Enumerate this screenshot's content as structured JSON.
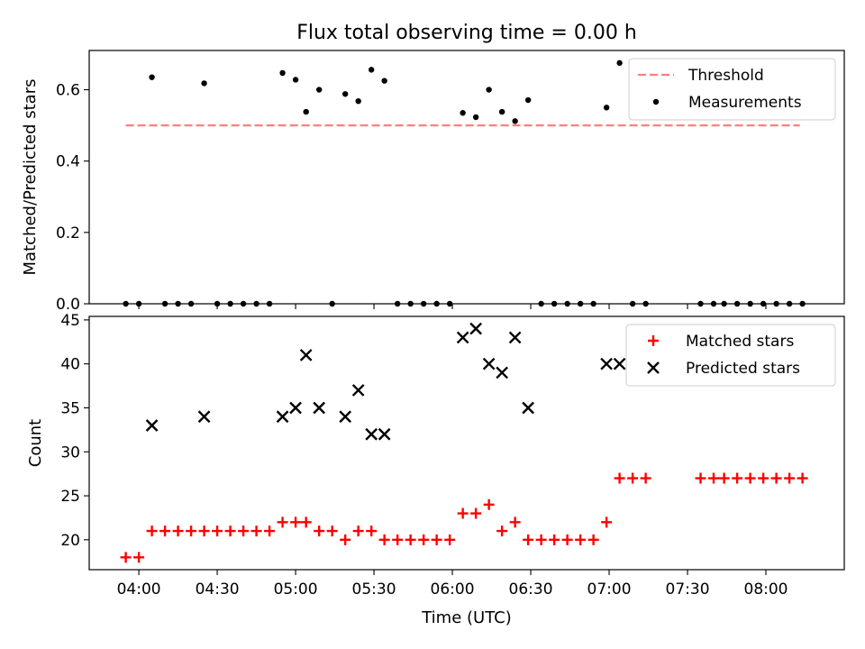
{
  "chart_data": [
    {
      "type": "scatter",
      "title": "Flux total observing time = 0.00 h",
      "xlabel": "",
      "ylabel": "Matched/Predicted stars",
      "ylim": [
        0.0,
        0.71
      ],
      "yticks": [
        0.0,
        0.2,
        0.4,
        0.6
      ],
      "ytick_labels": [
        "0.0",
        "0.2",
        "0.4",
        "0.6"
      ],
      "xlim": [
        "03:41",
        "08:30"
      ],
      "xticks": [
        "04:00",
        "04:30",
        "05:00",
        "05:30",
        "06:00",
        "06:30",
        "07:00",
        "07:30",
        "08:00"
      ],
      "xtick_labels_shown": false,
      "legend_position": "top-right",
      "series": [
        {
          "name": "Threshold",
          "kind": "line",
          "style": "dashed",
          "color": "#ff7f7f",
          "points": [
            [
              "03:55",
              0.5
            ],
            [
              "08:13",
              0.5
            ]
          ]
        },
        {
          "name": "Measurements",
          "kind": "scatter",
          "color": "#000000",
          "points": [
            [
              "03:55",
              0.0
            ],
            [
              "04:00",
              0.0
            ],
            [
              "04:05",
              0.635
            ],
            [
              "04:10",
              0.0
            ],
            [
              "04:15",
              0.0
            ],
            [
              "04:20",
              0.0
            ],
            [
              "04:25",
              0.618
            ],
            [
              "04:30",
              0.0
            ],
            [
              "04:35",
              0.0
            ],
            [
              "04:40",
              0.0
            ],
            [
              "04:45",
              0.0
            ],
            [
              "04:50",
              0.0
            ],
            [
              "04:55",
              0.647
            ],
            [
              "05:00",
              0.628
            ],
            [
              "05:04",
              0.538
            ],
            [
              "05:09",
              0.6
            ],
            [
              "05:14",
              0.0
            ],
            [
              "05:19",
              0.588
            ],
            [
              "05:24",
              0.568
            ],
            [
              "05:29",
              0.656
            ],
            [
              "05:34",
              0.625
            ],
            [
              "05:39",
              0.0
            ],
            [
              "05:44",
              0.0
            ],
            [
              "05:49",
              0.0
            ],
            [
              "05:54",
              0.0
            ],
            [
              "05:59",
              0.0
            ],
            [
              "06:04",
              0.535
            ],
            [
              "06:09",
              0.523
            ],
            [
              "06:14",
              0.6
            ],
            [
              "06:19",
              0.538
            ],
            [
              "06:24",
              0.512
            ],
            [
              "06:29",
              0.571
            ],
            [
              "06:34",
              0.0
            ],
            [
              "06:39",
              0.0
            ],
            [
              "06:44",
              0.0
            ],
            [
              "06:49",
              0.0
            ],
            [
              "06:54",
              0.0
            ],
            [
              "06:59",
              0.55
            ],
            [
              "07:04",
              0.675
            ],
            [
              "07:09",
              0.0
            ],
            [
              "07:14",
              0.0
            ],
            [
              "07:35",
              0.0
            ],
            [
              "07:40",
              0.0
            ],
            [
              "07:44",
              0.0
            ],
            [
              "07:49",
              0.0
            ],
            [
              "07:54",
              0.0
            ],
            [
              "07:59",
              0.0
            ],
            [
              "08:04",
              0.0
            ],
            [
              "08:09",
              0.0
            ],
            [
              "08:14",
              0.0
            ]
          ]
        }
      ]
    },
    {
      "type": "scatter",
      "title": "",
      "xlabel": "Time (UTC)",
      "ylabel": "Count",
      "ylim": [
        16.6,
        45.4
      ],
      "yticks": [
        20,
        25,
        30,
        35,
        40,
        45
      ],
      "ytick_labels": [
        "20",
        "25",
        "30",
        "35",
        "40",
        "45"
      ],
      "xlim": [
        "03:41",
        "08:30"
      ],
      "xticks": [
        "04:00",
        "04:30",
        "05:00",
        "05:30",
        "06:00",
        "06:30",
        "07:00",
        "07:30",
        "08:00"
      ],
      "xtick_labels": [
        "04:00",
        "04:30",
        "05:00",
        "05:30",
        "06:00",
        "06:30",
        "07:00",
        "07:30",
        "08:00"
      ],
      "legend_position": "top-right",
      "series": [
        {
          "name": "Matched stars",
          "marker": "plus",
          "color": "#ff0000",
          "points": [
            [
              "03:55",
              18
            ],
            [
              "04:00",
              18
            ],
            [
              "04:05",
              21
            ],
            [
              "04:10",
              21
            ],
            [
              "04:15",
              21
            ],
            [
              "04:20",
              21
            ],
            [
              "04:25",
              21
            ],
            [
              "04:30",
              21
            ],
            [
              "04:35",
              21
            ],
            [
              "04:40",
              21
            ],
            [
              "04:45",
              21
            ],
            [
              "04:50",
              21
            ],
            [
              "04:55",
              22
            ],
            [
              "05:00",
              22
            ],
            [
              "05:04",
              22
            ],
            [
              "05:09",
              21
            ],
            [
              "05:14",
              21
            ],
            [
              "05:19",
              20
            ],
            [
              "05:24",
              21
            ],
            [
              "05:29",
              21
            ],
            [
              "05:34",
              20
            ],
            [
              "05:39",
              20
            ],
            [
              "05:44",
              20
            ],
            [
              "05:49",
              20
            ],
            [
              "05:54",
              20
            ],
            [
              "05:59",
              20
            ],
            [
              "06:04",
              23
            ],
            [
              "06:09",
              23
            ],
            [
              "06:14",
              24
            ],
            [
              "06:19",
              21
            ],
            [
              "06:24",
              22
            ],
            [
              "06:29",
              20
            ],
            [
              "06:34",
              20
            ],
            [
              "06:39",
              20
            ],
            [
              "06:44",
              20
            ],
            [
              "06:49",
              20
            ],
            [
              "06:54",
              20
            ],
            [
              "06:59",
              22
            ],
            [
              "07:04",
              27
            ],
            [
              "07:09",
              27
            ],
            [
              "07:14",
              27
            ],
            [
              "07:35",
              27
            ],
            [
              "07:40",
              27
            ],
            [
              "07:44",
              27
            ],
            [
              "07:49",
              27
            ],
            [
              "07:54",
              27
            ],
            [
              "07:59",
              27
            ],
            [
              "08:04",
              27
            ],
            [
              "08:09",
              27
            ],
            [
              "08:14",
              27
            ]
          ]
        },
        {
          "name": "Predicted stars",
          "marker": "x",
          "color": "#000000",
          "points": [
            [
              "04:05",
              33
            ],
            [
              "04:25",
              34
            ],
            [
              "04:55",
              34
            ],
            [
              "05:00",
              35
            ],
            [
              "05:04",
              41
            ],
            [
              "05:09",
              35
            ],
            [
              "05:19",
              34
            ],
            [
              "05:24",
              37
            ],
            [
              "05:29",
              32
            ],
            [
              "05:34",
              32
            ],
            [
              "06:04",
              43
            ],
            [
              "06:09",
              44
            ],
            [
              "06:14",
              40
            ],
            [
              "06:19",
              39
            ],
            [
              "06:24",
              43
            ],
            [
              "06:29",
              35
            ],
            [
              "06:59",
              40
            ],
            [
              "07:04",
              40
            ]
          ]
        }
      ]
    }
  ]
}
